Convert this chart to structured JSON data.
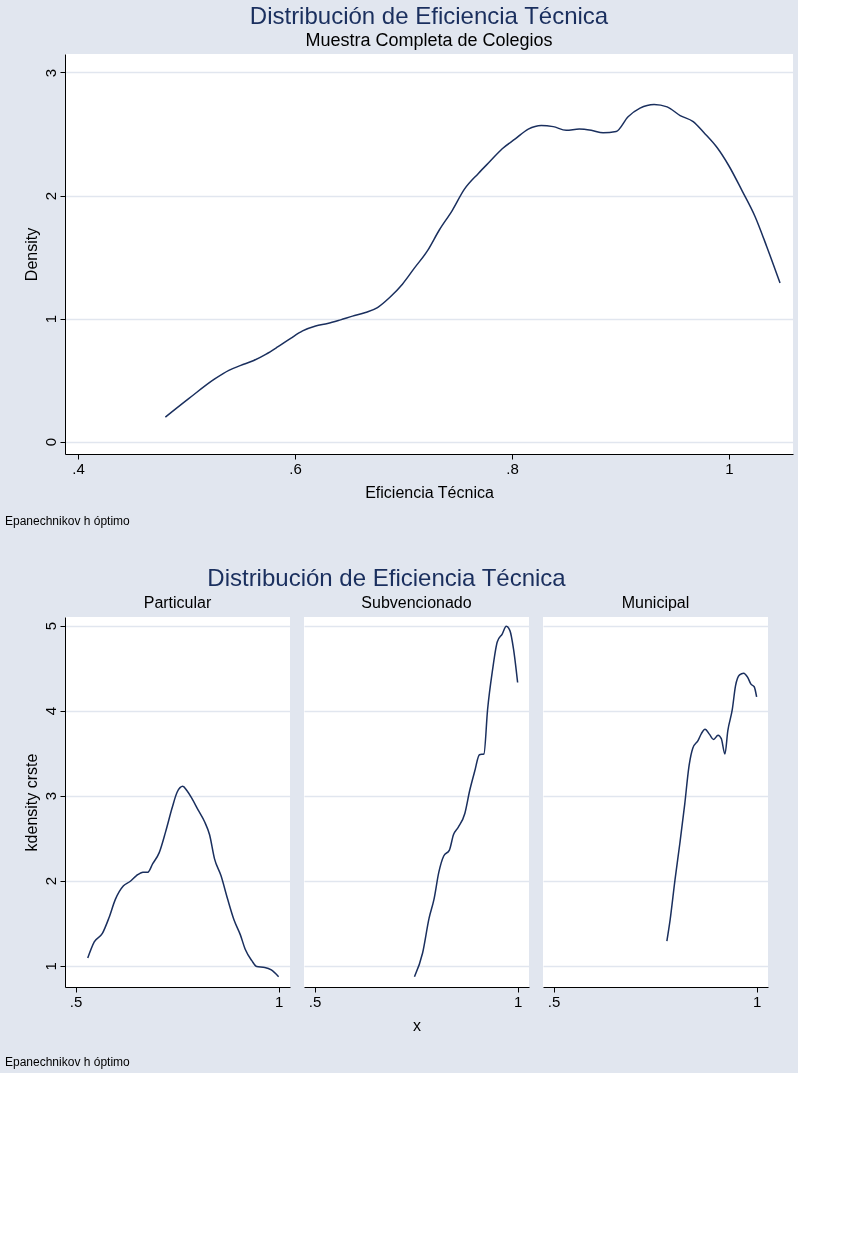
{
  "chart_data": [
    {
      "type": "line",
      "title": "Distribución de Eficiencia Técnica",
      "subtitle": "Muestra Completa de Colegios",
      "xlabel": "Eficiencia Técnica",
      "ylabel": "Density",
      "annotations": [
        "Epanechnikov h óptimo"
      ],
      "grid": "y",
      "xlim": [
        0.388,
        1.059
      ],
      "ylim": [
        -0.1,
        3.15
      ],
      "xticks": [
        {
          "value": 0.4,
          "label": ".4"
        },
        {
          "value": 0.6,
          "label": ".6"
        },
        {
          "value": 0.8,
          "label": ".8"
        },
        1
      ],
      "yticks": [
        0,
        1,
        2,
        3
      ],
      "x": [
        0.4805,
        0.502,
        0.526,
        0.539,
        0.55,
        0.562,
        0.573,
        0.584,
        0.596,
        0.607,
        0.619,
        0.63,
        0.642,
        0.653,
        0.665,
        0.676,
        0.687,
        0.699,
        0.71,
        0.722,
        0.733,
        0.745,
        0.756,
        0.769,
        0.78,
        0.791,
        0.803,
        0.815,
        0.827,
        0.838,
        0.85,
        0.862,
        0.873,
        0.884,
        0.896,
        0.907,
        0.918,
        0.931,
        0.943,
        0.955,
        0.967,
        0.977,
        0.989,
        1.0,
        1.012,
        1.024,
        1.035,
        1.047
      ],
      "series": [
        {
          "color": "#1a2f5e",
          "values": [
            0.2,
            0.35,
            0.51,
            0.58,
            0.62,
            0.66,
            0.71,
            0.77,
            0.84,
            0.9,
            0.94,
            0.96,
            0.99,
            1.02,
            1.05,
            1.09,
            1.17,
            1.28,
            1.41,
            1.55,
            1.72,
            1.88,
            2.05,
            2.18,
            2.28,
            2.38,
            2.46,
            2.54,
            2.57,
            2.56,
            2.53,
            2.54,
            2.53,
            2.51,
            2.52,
            2.64,
            2.71,
            2.74,
            2.72,
            2.65,
            2.6,
            2.51,
            2.39,
            2.24,
            2.04,
            1.83,
            1.58,
            1.29
          ]
        }
      ]
    },
    {
      "type": "line",
      "title": "Distribución de Eficiencia Técnica",
      "subtitle": "Particular",
      "ylabel": "kdensity crste",
      "annotations": [
        "Epanechnikov h óptimo"
      ],
      "grid": "y",
      "xlim": [
        0.474,
        1.028
      ],
      "ylim": [
        0.75,
        5.1
      ],
      "xticks": [
        {
          "value": 0.5,
          "label": ".5"
        },
        1
      ],
      "yticks": [
        1,
        2,
        3,
        4,
        5
      ],
      "x": [
        0.53,
        0.546,
        0.566,
        0.582,
        0.598,
        0.618,
        0.634,
        0.65,
        0.666,
        0.678,
        0.69,
        0.706,
        0.722,
        0.738,
        0.75,
        0.764,
        0.774,
        0.786,
        0.802,
        0.818,
        0.83,
        0.842,
        0.858,
        0.874,
        0.89,
        0.906,
        0.918,
        0.934,
        0.946,
        0.966,
        0.982,
        1.0
      ],
      "series": [
        {
          "color": "#1a2f5e",
          "values": [
            1.09,
            1.28,
            1.38,
            1.56,
            1.78,
            1.94,
            1.99,
            2.06,
            2.1,
            2.1,
            2.2,
            2.33,
            2.58,
            2.86,
            3.04,
            3.11,
            3.06,
            2.97,
            2.83,
            2.69,
            2.54,
            2.26,
            2.06,
            1.79,
            1.54,
            1.36,
            1.19,
            1.06,
            0.99,
            0.98,
            0.95,
            0.87
          ]
        }
      ]
    },
    {
      "type": "line",
      "subtitle": "Subvencionado",
      "xlabel": "x",
      "tick_labels": "x",
      "grid": "y",
      "xlim": [
        0.474,
        1.028
      ],
      "ylim": [
        0.75,
        5.1
      ],
      "xticks": [
        {
          "value": 0.5,
          "label": ".5"
        },
        1
      ],
      "yticks": [
        1,
        2,
        3,
        4,
        5
      ],
      "x": [
        0.746,
        0.766,
        0.782,
        0.794,
        0.806,
        0.818,
        0.832,
        0.842,
        0.854,
        0.87,
        0.882,
        0.894,
        0.906,
        0.917,
        0.926,
        0.938,
        0.95,
        0.962,
        0.972,
        0.981,
        0.99,
        1.0
      ],
      "series": [
        {
          "color": "#1a2f5e",
          "values": [
            0.87,
            1.15,
            1.56,
            1.78,
            2.1,
            2.29,
            2.36,
            2.54,
            2.63,
            2.79,
            3.06,
            3.28,
            3.48,
            3.49,
            4.01,
            4.47,
            4.81,
            4.9,
            4.99,
            4.94,
            4.72,
            4.33
          ]
        }
      ]
    },
    {
      "type": "line",
      "subtitle": "Municipal",
      "tick_labels": "x",
      "grid": "y",
      "xlim": [
        0.474,
        1.028
      ],
      "ylim": [
        0.75,
        5.1
      ],
      "xticks": [
        {
          "value": 0.5,
          "label": ".5"
        },
        1
      ],
      "yticks": [
        1,
        2,
        3,
        4,
        5
      ],
      "x": [
        0.779,
        0.787,
        0.799,
        0.811,
        0.823,
        0.833,
        0.843,
        0.856,
        0.864,
        0.873,
        0.884,
        0.894,
        0.905,
        0.913,
        0.922,
        0.929,
        0.94,
        0.948,
        0.958,
        0.968,
        0.978,
        0.986,
        0.994,
        1.0
      ],
      "series": [
        {
          "color": "#1a2f5e",
          "values": [
            1.29,
            1.54,
            2.01,
            2.44,
            2.9,
            3.33,
            3.56,
            3.65,
            3.73,
            3.78,
            3.72,
            3.66,
            3.71,
            3.67,
            3.49,
            3.76,
            4.01,
            4.29,
            4.42,
            4.44,
            4.39,
            4.31,
            4.28,
            4.16
          ]
        }
      ]
    }
  ]
}
